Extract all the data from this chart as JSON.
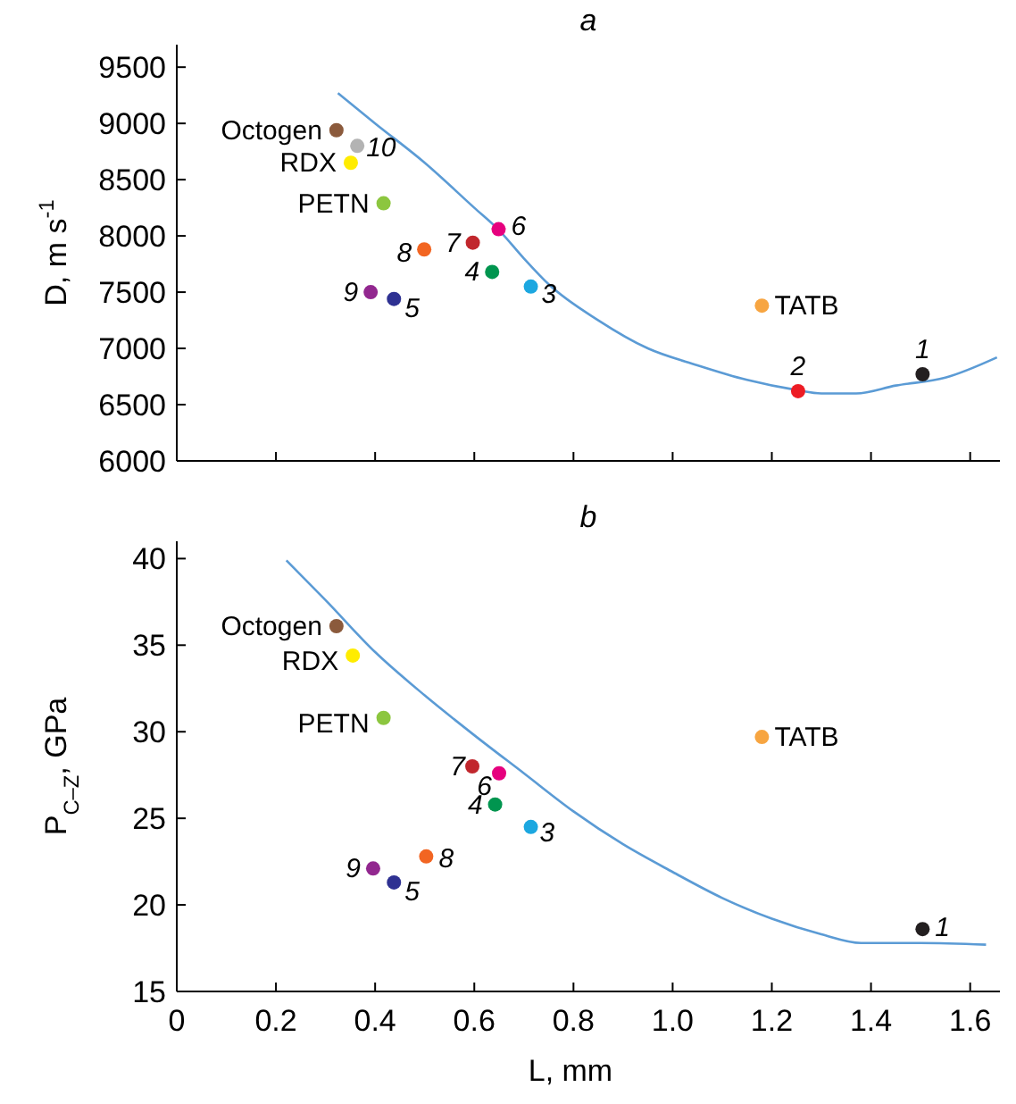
{
  "chart_data": [
    {
      "type": "scatter",
      "title": "a",
      "ylabel": "D, m s$^{-1}$",
      "xlim": [
        0,
        1.66
      ],
      "xticks": [
        {
          "value": 0,
          "label": null
        },
        {
          "value": 0.2,
          "label": null
        },
        {
          "value": 0.4,
          "label": null
        },
        {
          "value": 0.6,
          "label": null
        },
        {
          "value": 0.8,
          "label": null
        },
        {
          "value": 1.0,
          "label": null
        },
        {
          "value": 1.2,
          "label": null
        },
        {
          "value": 1.4,
          "label": null
        },
        {
          "value": 1.6,
          "label": null
        }
      ],
      "ylim": [
        6000,
        9700
      ],
      "yticks": [
        6000,
        6500,
        7000,
        7500,
        8000,
        8500,
        9000,
        9500
      ],
      "tick_labels": "y",
      "marker": "circle",
      "grid": false,
      "series": [
        {
          "name": "Octogen",
          "color": "#8b5a3c",
          "x": [
            0.322
          ],
          "values": [
            8940
          ]
        },
        {
          "name": "10",
          "color": "#b3b3b3",
          "x": [
            0.364
          ],
          "values": [
            8800
          ]
        },
        {
          "name": "RDX",
          "color": "#ffec00",
          "x": [
            0.351
          ],
          "values": [
            8650
          ]
        },
        {
          "name": "PETN",
          "color": "#8cc63f",
          "x": [
            0.417
          ],
          "values": [
            8290
          ]
        },
        {
          "name": "1",
          "color": "#231f20",
          "x": [
            1.504
          ],
          "values": [
            6770
          ]
        },
        {
          "name": "2",
          "color": "#ed1c24",
          "x": [
            1.253
          ],
          "values": [
            6620
          ]
        },
        {
          "name": "3",
          "color": "#1ca7e0",
          "x": [
            0.714
          ],
          "values": [
            7550
          ]
        },
        {
          "name": "4",
          "color": "#00954f",
          "x": [
            0.636
          ],
          "values": [
            7680
          ]
        },
        {
          "name": "5",
          "color": "#2e3192",
          "x": [
            0.438
          ],
          "values": [
            7440
          ]
        },
        {
          "name": "6",
          "color": "#e6007e",
          "x": [
            0.649
          ],
          "values": [
            8060
          ]
        },
        {
          "name": "7",
          "color": "#c1272d",
          "x": [
            0.597
          ],
          "values": [
            7940
          ]
        },
        {
          "name": "8",
          "color": "#f26522",
          "x": [
            0.499
          ],
          "values": [
            7880
          ]
        },
        {
          "name": "9",
          "color": "#92278f",
          "x": [
            0.391
          ],
          "values": [
            7500
          ]
        },
        {
          "name": "TATB",
          "color": "#f7a541",
          "x": [
            1.18
          ],
          "values": [
            7380
          ]
        },
        {
          "type": "line",
          "color": "#5b9bd5",
          "marker": "none",
          "x": [
            0.325,
            0.4,
            0.5,
            0.6,
            0.65,
            0.7,
            0.75,
            0.85,
            0.95,
            1.05,
            1.15,
            1.25,
            1.3,
            1.37,
            1.45,
            1.55,
            1.654
          ],
          "values": [
            9270,
            9000,
            8650,
            8250,
            8050,
            7800,
            7570,
            7250,
            7000,
            6850,
            6720,
            6630,
            6600,
            6600,
            6670,
            6740,
            6920
          ]
        }
      ]
    },
    {
      "type": "scatter",
      "title": "b",
      "xlabel": "L, mm",
      "ylabel": "P$_{C–Z}$, GPa",
      "xlim": [
        0,
        1.66
      ],
      "xticks": [
        {
          "value": 0,
          "label": "0"
        },
        {
          "value": 0.2,
          "label": "0.2"
        },
        {
          "value": 0.4,
          "label": "0.4"
        },
        {
          "value": 0.6,
          "label": "0.6"
        },
        {
          "value": 0.8,
          "label": "0.8"
        },
        {
          "value": 1.0,
          "label": "1.0"
        },
        {
          "value": 1.2,
          "label": "1.2"
        },
        {
          "value": 1.4,
          "label": "1.4"
        },
        {
          "value": 1.6,
          "label": "1.6"
        }
      ],
      "ylim": [
        15,
        41
      ],
      "yticks": [
        15,
        20,
        25,
        30,
        35,
        40
      ],
      "marker": "circle",
      "grid": false,
      "series": [
        {
          "name": "Octogen",
          "color": "#8b5a3c",
          "x": [
            0.322
          ],
          "values": [
            36.1
          ]
        },
        {
          "name": "RDX",
          "color": "#ffec00",
          "x": [
            0.355
          ],
          "values": [
            34.4
          ]
        },
        {
          "name": "PETN",
          "color": "#8cc63f",
          "x": [
            0.417
          ],
          "values": [
            30.8
          ]
        },
        {
          "name": "TATB",
          "color": "#f7a541",
          "x": [
            1.18
          ],
          "values": [
            29.7
          ]
        },
        {
          "name": "7",
          "color": "#c1272d",
          "x": [
            0.596
          ],
          "values": [
            28.0
          ]
        },
        {
          "name": "6",
          "color": "#e6007e",
          "x": [
            0.65
          ],
          "values": [
            27.6
          ]
        },
        {
          "name": "4",
          "color": "#00954f",
          "x": [
            0.642
          ],
          "values": [
            25.8
          ]
        },
        {
          "name": "3",
          "color": "#1ca7e0",
          "x": [
            0.714
          ],
          "values": [
            24.5
          ]
        },
        {
          "name": "8",
          "color": "#f26522",
          "x": [
            0.503
          ],
          "values": [
            22.8
          ]
        },
        {
          "name": "9",
          "color": "#92278f",
          "x": [
            0.396
          ],
          "values": [
            22.1
          ]
        },
        {
          "name": "5",
          "color": "#2e3192",
          "x": [
            0.438
          ],
          "values": [
            21.3
          ]
        },
        {
          "name": "1",
          "color": "#231f20",
          "x": [
            1.504
          ],
          "values": [
            18.6
          ]
        },
        {
          "type": "line",
          "color": "#5b9bd5",
          "marker": "none",
          "x": [
            0.221,
            0.3,
            0.4,
            0.5,
            0.6,
            0.7,
            0.8,
            0.9,
            1.0,
            1.1,
            1.2,
            1.3,
            1.38,
            1.5,
            1.632
          ],
          "values": [
            39.9,
            37.6,
            34.6,
            32.1,
            29.8,
            27.6,
            25.4,
            23.5,
            21.9,
            20.4,
            19.2,
            18.3,
            17.8,
            17.8,
            17.7
          ]
        }
      ]
    }
  ]
}
